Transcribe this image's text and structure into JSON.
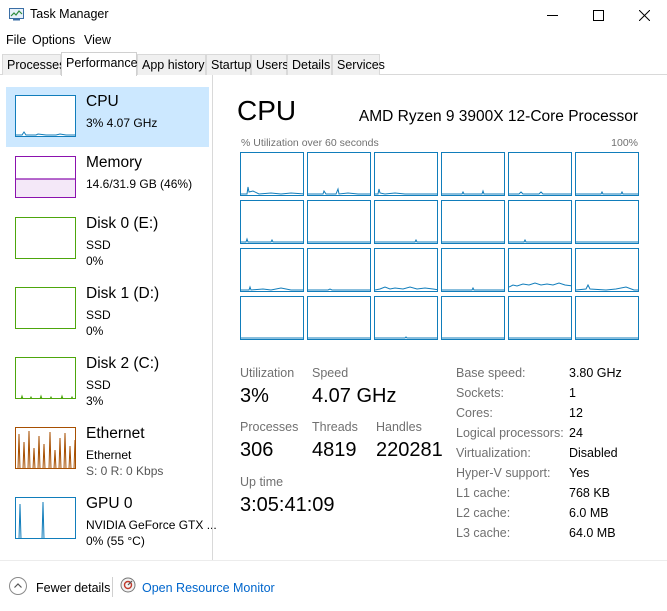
{
  "window": {
    "title": "Task Manager"
  },
  "menu": [
    "File",
    "Options",
    "View"
  ],
  "tabs": [
    "Processes",
    "Performance",
    "App history",
    "Startup",
    "Users",
    "Details",
    "Services"
  ],
  "active_tab": "Performance",
  "sidebar": {
    "items": [
      {
        "name": "CPU",
        "line1": "3% 4.07 GHz",
        "line2": "",
        "color": "#117dbb"
      },
      {
        "name": "Memory",
        "line1": "14.6/31.9 GB (46%)",
        "line2": "",
        "color": "#8b12ae"
      },
      {
        "name": "Disk 0 (E:)",
        "line1": "SSD",
        "line2": "0%",
        "color": "#4da60c"
      },
      {
        "name": "Disk 1 (D:)",
        "line1": "SSD",
        "line2": "0%",
        "color": "#4da60c"
      },
      {
        "name": "Disk 2 (C:)",
        "line1": "SSD",
        "line2": "3%",
        "color": "#4da60c"
      },
      {
        "name": "Ethernet",
        "line1": "Ethernet",
        "line2": "S: 0  R: 0 Kbps",
        "color": "#a74f01"
      },
      {
        "name": "GPU 0",
        "line1": "NVIDIA GeForce GTX ...",
        "line2": "0% (55 °C)",
        "color": "#117dbb"
      }
    ]
  },
  "cpu_panel": {
    "title": "CPU",
    "model": "AMD Ryzen 9 3900X 12-Core Processor",
    "graph_caption": "% Utilization over 60 seconds",
    "graph_max": "100%",
    "stats": {
      "utilization_label": "Utilization",
      "utilization": "3%",
      "speed_label": "Speed",
      "speed": "4.07 GHz",
      "processes_label": "Processes",
      "processes": "306",
      "threads_label": "Threads",
      "threads": "4819",
      "handles_label": "Handles",
      "handles": "220281",
      "uptime_label": "Up time",
      "uptime": "3:05:41:09"
    },
    "details": [
      {
        "label": "Base speed:",
        "value": "3.80 GHz"
      },
      {
        "label": "Sockets:",
        "value": "1"
      },
      {
        "label": "Cores:",
        "value": "12"
      },
      {
        "label": "Logical processors:",
        "value": "24"
      },
      {
        "label": "Virtualization:",
        "value": "Disabled"
      },
      {
        "label": "Hyper-V support:",
        "value": "Yes"
      },
      {
        "label": "L1 cache:",
        "value": "768 KB"
      },
      {
        "label": "L2 cache:",
        "value": "6.0 MB"
      },
      {
        "label": "L3 cache:",
        "value": "64.0 MB"
      }
    ]
  },
  "footer": {
    "fewer_details": "Fewer details",
    "open_resource_monitor": "Open Resource Monitor"
  }
}
